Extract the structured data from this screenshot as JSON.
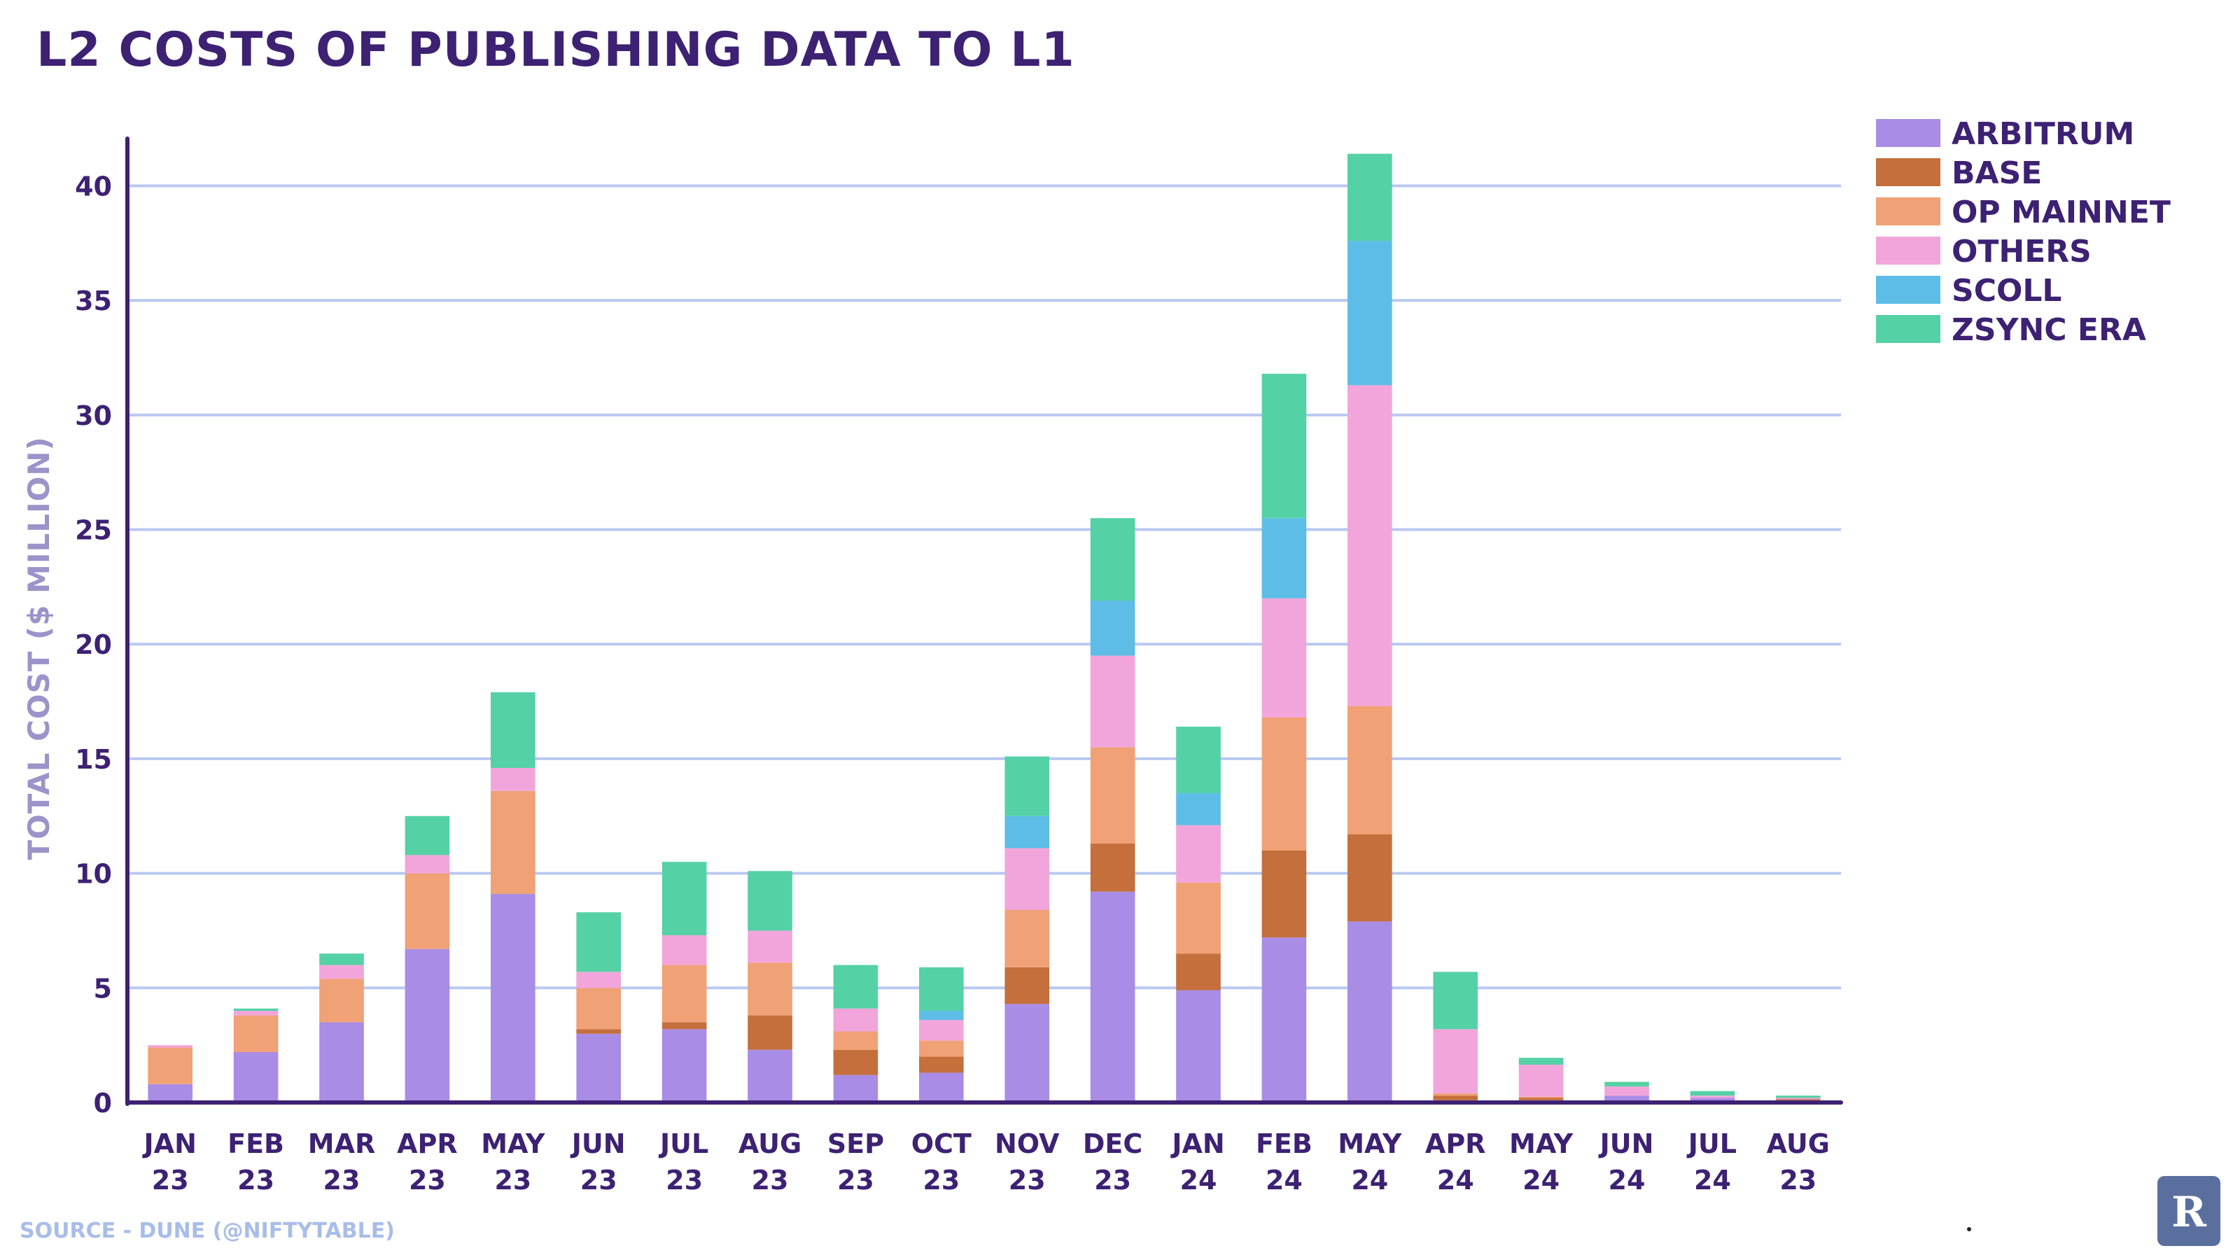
{
  "chart_data": {
    "type": "bar",
    "stacked": true,
    "title": "L2 COSTS OF PUBLISHING DATA TO L1",
    "ylabel": "TOTAL COST ($ MILLION)",
    "xlabel": "",
    "ylim": [
      0,
      42
    ],
    "yticks": [
      0,
      5,
      10,
      15,
      20,
      25,
      30,
      35,
      40
    ],
    "grid": true,
    "legend_position": "top-right",
    "source": "SOURCE - DUNE (@NIFTYTABLE)",
    "categories": [
      [
        "JAN",
        "23"
      ],
      [
        "FEB",
        "23"
      ],
      [
        "MAR",
        "23"
      ],
      [
        "APR",
        "23"
      ],
      [
        "MAY",
        "23"
      ],
      [
        "JUN",
        "23"
      ],
      [
        "JUL",
        "23"
      ],
      [
        "AUG",
        "23"
      ],
      [
        "SEP",
        "23"
      ],
      [
        "OCT",
        "23"
      ],
      [
        "NOV",
        "23"
      ],
      [
        "DEC",
        "23"
      ],
      [
        "JAN",
        "24"
      ],
      [
        "FEB",
        "24"
      ],
      [
        "MAY",
        "24"
      ],
      [
        "APR",
        "24"
      ],
      [
        "MAY",
        "24"
      ],
      [
        "JUN",
        "24"
      ],
      [
        "JUL",
        "24"
      ],
      [
        "AUG",
        "23"
      ]
    ],
    "series": [
      {
        "name": "ARBITRUM",
        "color": "#a98ce6",
        "values": [
          0.8,
          2.2,
          3.5,
          6.7,
          9.1,
          3.0,
          3.2,
          2.3,
          1.2,
          1.3,
          4.3,
          9.2,
          4.9,
          7.2,
          7.9,
          0.1,
          0.1,
          0.3,
          0.2,
          0.1
        ]
      },
      {
        "name": "BASE",
        "color": "#c46f3c",
        "values": [
          0,
          0,
          0,
          0,
          0,
          0.2,
          0.3,
          1.5,
          1.1,
          0.7,
          1.6,
          2.1,
          1.6,
          3.8,
          3.8,
          0.2,
          0.1,
          0,
          0,
          0.05
        ]
      },
      {
        "name": "OP MAINNET",
        "color": "#f0a176",
        "values": [
          1.6,
          1.6,
          1.9,
          3.3,
          4.5,
          1.8,
          2.5,
          2.3,
          0.8,
          0.7,
          2.5,
          4.2,
          3.1,
          5.8,
          5.6,
          0.1,
          0.05,
          0,
          0,
          0
        ]
      },
      {
        "name": "OTHERS",
        "color": "#f2a5db",
        "values": [
          0.1,
          0.2,
          0.6,
          0.8,
          1.0,
          0.7,
          1.3,
          1.4,
          1.0,
          0.9,
          2.7,
          4.0,
          2.5,
          5.2,
          14.0,
          2.8,
          1.4,
          0.4,
          0.1,
          0.05
        ]
      },
      {
        "name": "SCOLL",
        "color": "#5dbde6",
        "values": [
          0,
          0,
          0,
          0,
          0,
          0,
          0,
          0,
          0,
          0.4,
          1.4,
          2.4,
          1.4,
          3.5,
          6.3,
          0,
          0,
          0,
          0,
          0
        ]
      },
      {
        "name": "ZSYNC ERA",
        "color": "#55d1a6",
        "values": [
          0,
          0.1,
          0.5,
          1.7,
          3.3,
          2.6,
          3.2,
          2.6,
          1.9,
          1.9,
          2.6,
          3.6,
          2.9,
          6.3,
          3.8,
          2.5,
          0.3,
          0.2,
          0.2,
          0.1
        ]
      }
    ]
  },
  "logo": {
    "name": "publication-logo",
    "text": "R"
  }
}
